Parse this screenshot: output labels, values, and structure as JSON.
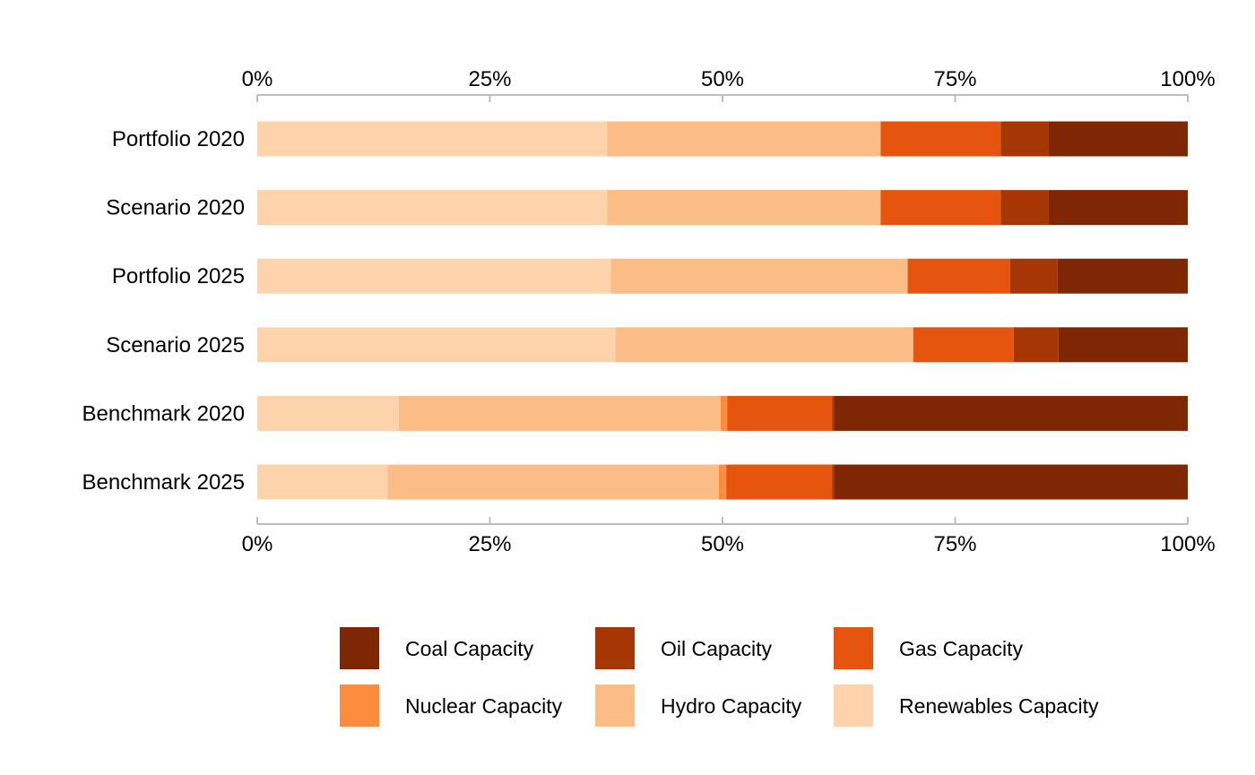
{
  "chart_data": {
    "type": "bar",
    "orientation": "horizontal",
    "stacked": true,
    "normalized": true,
    "title": "",
    "xlabel": "",
    "ylabel": "",
    "xlim": [
      0,
      1
    ],
    "x_tick_values": [
      0,
      0.25,
      0.5,
      0.75,
      1
    ],
    "x_tick_labels": [
      "0%",
      "25%",
      "50%",
      "75%",
      "100%"
    ],
    "axis_position": "top-and-bottom",
    "grid": false,
    "legend_position": "bottom",
    "categories": [
      "Portfolio 2020",
      "Scenario 2020",
      "Portfolio 2025",
      "Scenario 2025",
      "Benchmark 2020",
      "Benchmark 2025"
    ],
    "series": [
      {
        "name": "Renewables Capacity",
        "color": "#fdd3ab",
        "values": [
          0.376,
          0.376,
          0.38,
          0.385,
          0.152,
          0.14
        ]
      },
      {
        "name": "Hydro Capacity",
        "color": "#fcbc86",
        "values": [
          0.294,
          0.294,
          0.319,
          0.32,
          0.346,
          0.356
        ]
      },
      {
        "name": "Nuclear Capacity",
        "color": "#fd8d3c",
        "values": [
          0.0,
          0.0,
          0.0,
          0.0,
          0.007,
          0.008
        ]
      },
      {
        "name": "Gas Capacity",
        "color": "#e6550d",
        "values": [
          0.129,
          0.129,
          0.11,
          0.108,
          0.113,
          0.114
        ]
      },
      {
        "name": "Oil Capacity",
        "color": "#a63603",
        "values": [
          0.051,
          0.051,
          0.051,
          0.048,
          0.002,
          0.002
        ]
      },
      {
        "name": "Coal Capacity",
        "color": "#7f2704",
        "values": [
          0.15,
          0.15,
          0.14,
          0.139,
          0.38,
          0.38
        ]
      }
    ],
    "legend_order": [
      "Coal Capacity",
      "Oil Capacity",
      "Gas Capacity",
      "Nuclear Capacity",
      "Hydro Capacity",
      "Renewables Capacity"
    ]
  }
}
